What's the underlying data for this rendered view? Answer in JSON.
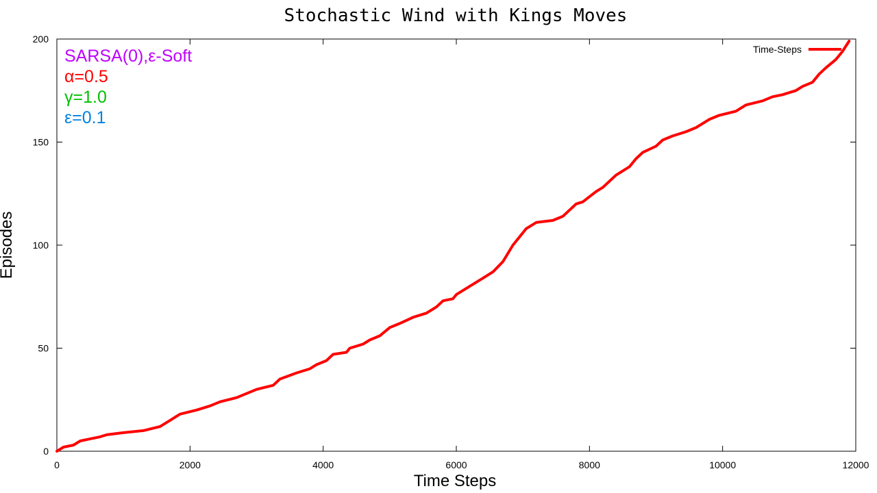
{
  "chart_data": {
    "type": "line",
    "title": "Stochastic Wind with Kings Moves",
    "xlabel": "Time Steps",
    "ylabel": "Episodes",
    "xlim": [
      0,
      12000
    ],
    "ylim": [
      0,
      200
    ],
    "xticks": [
      0,
      2000,
      4000,
      6000,
      8000,
      10000,
      12000
    ],
    "yticks": [
      0,
      50,
      100,
      150,
      200
    ],
    "grid": false,
    "legend_position": "top-right",
    "annotations": [
      {
        "text": "SARSA(0),ε-Soft",
        "color": "#bf00ff"
      },
      {
        "text": "α=0.5",
        "color": "#ff0000"
      },
      {
        "text": "γ=1.0",
        "color": "#00c000"
      },
      {
        "text": "ε=0.1",
        "color": "#0080e0"
      }
    ],
    "series": [
      {
        "name": "Time-Steps",
        "color": "#ff0000",
        "x": [
          0,
          100,
          250,
          350,
          500,
          650,
          750,
          1000,
          1300,
          1550,
          1700,
          1850,
          2100,
          2300,
          2450,
          2700,
          2850,
          3000,
          3250,
          3350,
          3600,
          3800,
          3900,
          4050,
          4150,
          4350,
          4400,
          4600,
          4700,
          4850,
          5000,
          5150,
          5350,
          5550,
          5700,
          5800,
          5950,
          6000,
          6200,
          6400,
          6550,
          6700,
          6850,
          7000,
          7050,
          7200,
          7450,
          7600,
          7800,
          7900,
          8100,
          8200,
          8300,
          8400,
          8600,
          8700,
          8800,
          9000,
          9100,
          9250,
          9450,
          9600,
          9800,
          9950,
          10200,
          10350,
          10600,
          10750,
          10900,
          11100,
          11200,
          11350,
          11450,
          11550,
          11700,
          11800,
          11900
        ],
        "y": [
          0,
          2,
          3,
          5,
          6,
          7,
          8,
          9,
          10,
          12,
          15,
          18,
          20,
          22,
          24,
          26,
          28,
          30,
          32,
          35,
          38,
          40,
          42,
          44,
          47,
          48,
          50,
          52,
          54,
          56,
          60,
          62,
          65,
          67,
          70,
          73,
          74,
          76,
          80,
          84,
          87,
          92,
          100,
          106,
          108,
          111,
          112,
          114,
          120,
          121,
          126,
          128,
          131,
          134,
          138,
          142,
          145,
          148,
          151,
          153,
          155,
          157,
          161,
          163,
          165,
          168,
          170,
          172,
          173,
          175,
          177,
          179,
          183,
          186,
          190,
          194,
          199
        ]
      }
    ]
  }
}
